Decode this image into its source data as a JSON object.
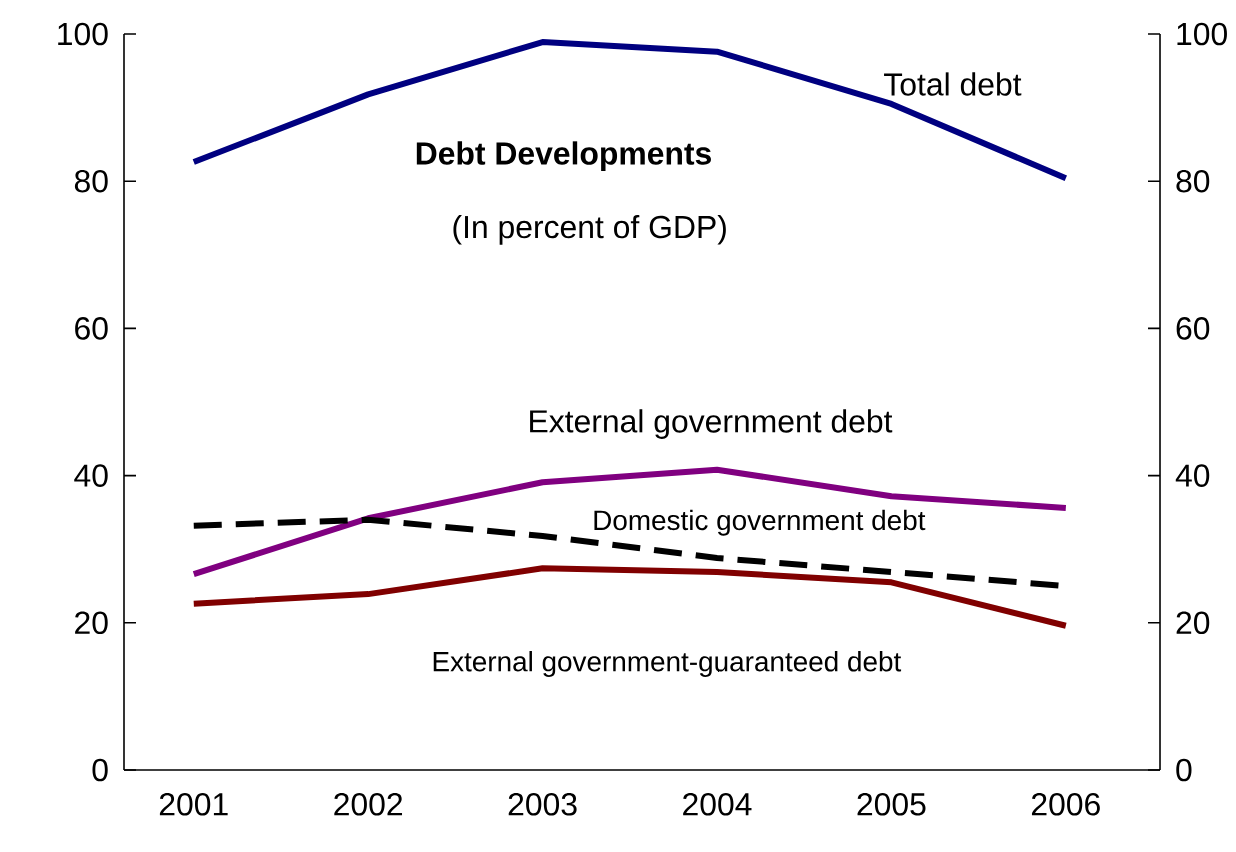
{
  "chart_data": {
    "type": "line",
    "title": "Debt Developments",
    "subtitle": "(In percent of GDP)",
    "categories": [
      "2001",
      "2002",
      "2003",
      "2004",
      "2005",
      "2006"
    ],
    "series": [
      {
        "name": "Total debt",
        "color": "#000080",
        "line_style": "solid",
        "values": [
          82.6,
          91.8,
          98.9,
          97.6,
          90.5,
          80.4
        ]
      },
      {
        "name": "External government debt",
        "color": "#800080",
        "line_style": "solid",
        "values": [
          26.6,
          34.2,
          39.1,
          40.8,
          37.2,
          35.6
        ]
      },
      {
        "name": "Domestic government debt",
        "color": "#000000",
        "line_style": "dashed",
        "values": [
          33.2,
          34.0,
          31.8,
          28.8,
          26.9,
          25.0
        ]
      },
      {
        "name": "External government-guaranteed debt",
        "color": "#800000",
        "line_style": "solid",
        "values": [
          22.6,
          23.9,
          27.4,
          26.9,
          25.5,
          19.6
        ]
      }
    ],
    "ylim": [
      0,
      100
    ],
    "yticks": [
      0,
      20,
      40,
      60,
      80,
      100
    ],
    "y2lim": [
      0,
      100
    ],
    "y2ticks": [
      0,
      20,
      40,
      60,
      80,
      100
    ],
    "grid": false,
    "legend": false,
    "marker": "none"
  }
}
